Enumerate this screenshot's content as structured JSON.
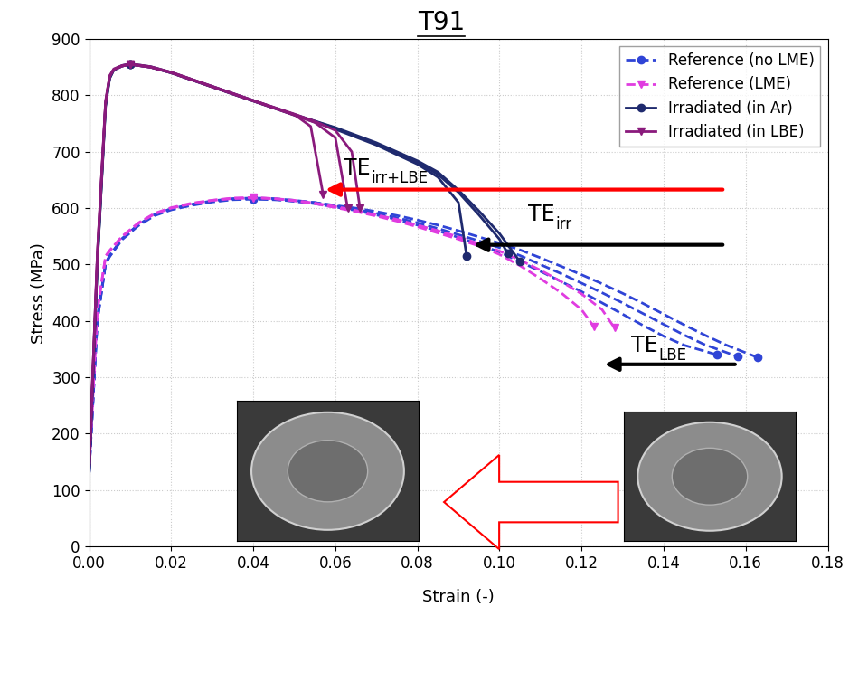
{
  "chart_data": {
    "type": "line",
    "title": "T91",
    "x_label": "Strain (-)",
    "y_label": "Stress (MPa)",
    "xlim": [
      0,
      0.18
    ],
    "xticks": [
      {
        "value": 0,
        "label": "0.00"
      },
      {
        "value": 0.02,
        "label": "0.02"
      },
      {
        "value": 0.04,
        "label": "0.04"
      },
      {
        "value": 0.06,
        "label": "0.06"
      },
      {
        "value": 0.08,
        "label": "0.08"
      },
      {
        "value": 0.1,
        "label": "0.10"
      },
      {
        "value": 0.12,
        "label": "0.12"
      },
      {
        "value": 0.14,
        "label": "0.14"
      },
      {
        "value": 0.16,
        "label": "0.16"
      },
      {
        "value": 0.18,
        "label": "0.18"
      }
    ],
    "ylim": [
      0,
      900
    ],
    "yticks": [
      0,
      100,
      200,
      300,
      400,
      500,
      600,
      700,
      800,
      900
    ],
    "grid": true,
    "legend": "upper right",
    "series": [
      {
        "name": "Reference (no LME)",
        "color": "#2f44d6",
        "line_style": "dashed",
        "marker": "circle",
        "curves": [
          {
            "x": [
              0,
              0.002,
              0.004,
              0.005,
              0.008,
              0.012,
              0.016,
              0.02,
              0.025,
              0.03,
              0.035,
              0.04,
              0.045,
              0.05,
              0.055,
              0.06,
              0.065,
              0.07,
              0.075,
              0.08,
              0.085,
              0.09,
              0.095,
              0.1,
              0.105,
              0.11,
              0.115,
              0.12,
              0.125,
              0.13,
              0.135,
              0.14,
              0.145,
              0.153
            ],
            "y": [
              130,
              400,
              500,
              515,
              545,
              570,
              588,
              598,
              606,
              612,
              616,
              617,
              616,
              612,
              608,
              602,
              596,
              588,
              580,
              570,
              560,
              548,
              536,
              522,
              505,
              488,
              470,
              452,
              432,
              412,
              392,
              373,
              357,
              340
            ]
          },
          {
            "x": [
              0,
              0.002,
              0.004,
              0.005,
              0.008,
              0.012,
              0.016,
              0.02,
              0.025,
              0.03,
              0.035,
              0.04,
              0.045,
              0.05,
              0.055,
              0.06,
              0.065,
              0.07,
              0.075,
              0.08,
              0.085,
              0.09,
              0.095,
              0.1,
              0.105,
              0.11,
              0.115,
              0.12,
              0.125,
              0.13,
              0.135,
              0.14,
              0.145,
              0.15,
              0.158
            ],
            "y": [
              130,
              405,
              502,
              516,
              546,
              571,
              589,
              599,
              607,
              613,
              617,
              618,
              617,
              614,
              610,
              604,
              598,
              591,
              583,
              574,
              564,
              553,
              542,
              530,
              516,
              500,
              484,
              467,
              450,
              432,
              413,
              394,
              375,
              358,
              337
            ]
          },
          {
            "x": [
              0,
              0.002,
              0.004,
              0.005,
              0.008,
              0.012,
              0.016,
              0.02,
              0.025,
              0.03,
              0.035,
              0.04,
              0.045,
              0.05,
              0.055,
              0.06,
              0.065,
              0.07,
              0.075,
              0.08,
              0.085,
              0.09,
              0.095,
              0.1,
              0.105,
              0.11,
              0.115,
              0.12,
              0.125,
              0.13,
              0.135,
              0.14,
              0.145,
              0.15,
              0.155,
              0.163
            ],
            "y": [
              130,
              402,
              501,
              514,
              544,
              569,
              587,
              597,
              605,
              611,
              615,
              616,
              615,
              613,
              610,
              605,
              600,
              594,
              587,
              579,
              570,
              560,
              549,
              538,
              526,
              512,
              497,
              482,
              466,
              449,
              431,
              412,
              393,
              375,
              358,
              335
            ]
          }
        ]
      },
      {
        "name": "Reference (LME)",
        "color": "#e03ce0",
        "line_style": "dashed",
        "marker": "triangle_down",
        "curves": [
          {
            "x": [
              0,
              0.002,
              0.004,
              0.005,
              0.008,
              0.012,
              0.016,
              0.02,
              0.025,
              0.03,
              0.035,
              0.04,
              0.045,
              0.05,
              0.055,
              0.06,
              0.065,
              0.07,
              0.075,
              0.08,
              0.085,
              0.09,
              0.095,
              0.1,
              0.105,
              0.11,
              0.115,
              0.12,
              0.123
            ],
            "y": [
              140,
              420,
              515,
              525,
              550,
              574,
              591,
              601,
              609,
              614,
              618,
              619,
              617,
              613,
              608,
              601,
              594,
              586,
              577,
              567,
              556,
              545,
              533,
              518,
              498,
              475,
              450,
              420,
              390
            ]
          },
          {
            "x": [
              0,
              0.002,
              0.004,
              0.005,
              0.008,
              0.012,
              0.016,
              0.02,
              0.025,
              0.03,
              0.035,
              0.04,
              0.045,
              0.05,
              0.055,
              0.06,
              0.065,
              0.07,
              0.075,
              0.08,
              0.085,
              0.09,
              0.095,
              0.1,
              0.105,
              0.11,
              0.115,
              0.12,
              0.125,
              0.128
            ],
            "y": [
              140,
              418,
              513,
              524,
              549,
              573,
              590,
              600,
              608,
              614,
              617,
              618,
              617,
              614,
              609,
              603,
              596,
              588,
              580,
              570,
              560,
              549,
              537,
              524,
              508,
              490,
              470,
              448,
              420,
              388
            ]
          }
        ]
      },
      {
        "name": "Irradiated (in Ar)",
        "color": "#1f2a6e",
        "line_style": "solid",
        "marker": "circle",
        "curves": [
          {
            "x": [
              0,
              0.002,
              0.004,
              0.005,
              0.006,
              0.008,
              0.01,
              0.015,
              0.02,
              0.03,
              0.04,
              0.05,
              0.06,
              0.07,
              0.075,
              0.08,
              0.085,
              0.09,
              0.092
            ],
            "y": [
              130,
              500,
              780,
              830,
              845,
              852,
              855,
              850,
              840,
              815,
              790,
              765,
              740,
              712,
              695,
              678,
              655,
              610,
              515
            ]
          },
          {
            "x": [
              0,
              0.002,
              0.004,
              0.005,
              0.006,
              0.008,
              0.01,
              0.015,
              0.02,
              0.03,
              0.04,
              0.05,
              0.06,
              0.07,
              0.075,
              0.08,
              0.085,
              0.09,
              0.095,
              0.1,
              0.102
            ],
            "y": [
              130,
              505,
              785,
              832,
              846,
              853,
              856,
              851,
              841,
              816,
              791,
              766,
              742,
              714,
              698,
              681,
              660,
              628,
              588,
              545,
              520
            ]
          },
          {
            "x": [
              0,
              0.002,
              0.004,
              0.005,
              0.006,
              0.008,
              0.01,
              0.015,
              0.02,
              0.03,
              0.04,
              0.05,
              0.06,
              0.07,
              0.075,
              0.08,
              0.085,
              0.09,
              0.095,
              0.1,
              0.105
            ],
            "y": [
              130,
              502,
              782,
              831,
              845,
              852,
              855,
              850,
              840,
              815,
              790,
              766,
              743,
              716,
              700,
              684,
              664,
              632,
              595,
              555,
              505
            ]
          }
        ]
      },
      {
        "name": "Irradiated (in LBE)",
        "color": "#8a1a7c",
        "line_style": "solid",
        "marker": "triangle_down",
        "curves": [
          {
            "x": [
              0,
              0.002,
              0.004,
              0.005,
              0.006,
              0.008,
              0.01,
              0.015,
              0.02,
              0.03,
              0.04,
              0.05,
              0.054,
              0.057
            ],
            "y": [
              140,
              520,
              790,
              835,
              847,
              853,
              856,
              851,
              841,
              816,
              791,
              766,
              745,
              625
            ]
          },
          {
            "x": [
              0,
              0.002,
              0.004,
              0.005,
              0.006,
              0.008,
              0.01,
              0.015,
              0.02,
              0.03,
              0.04,
              0.05,
              0.055,
              0.06,
              0.063
            ],
            "y": [
              140,
              518,
              788,
              834,
              846,
              852,
              855,
              850,
              840,
              815,
              790,
              765,
              752,
              725,
              600
            ]
          },
          {
            "x": [
              0,
              0.002,
              0.004,
              0.005,
              0.006,
              0.008,
              0.01,
              0.015,
              0.02,
              0.03,
              0.04,
              0.05,
              0.055,
              0.06,
              0.064,
              0.066
            ],
            "y": [
              140,
              515,
              786,
              833,
              846,
              852,
              855,
              850,
              841,
              816,
              791,
              767,
              754,
              738,
              700,
              600
            ]
          }
        ]
      }
    ],
    "annotations": [
      {
        "text": "TE",
        "subscript": "irr+LBE",
        "color": "#ff0000"
      },
      {
        "text": "TE",
        "subscript": "irr",
        "color": "#000000"
      },
      {
        "text": "TE",
        "subscript": "LBE",
        "color": "#000000"
      }
    ]
  }
}
